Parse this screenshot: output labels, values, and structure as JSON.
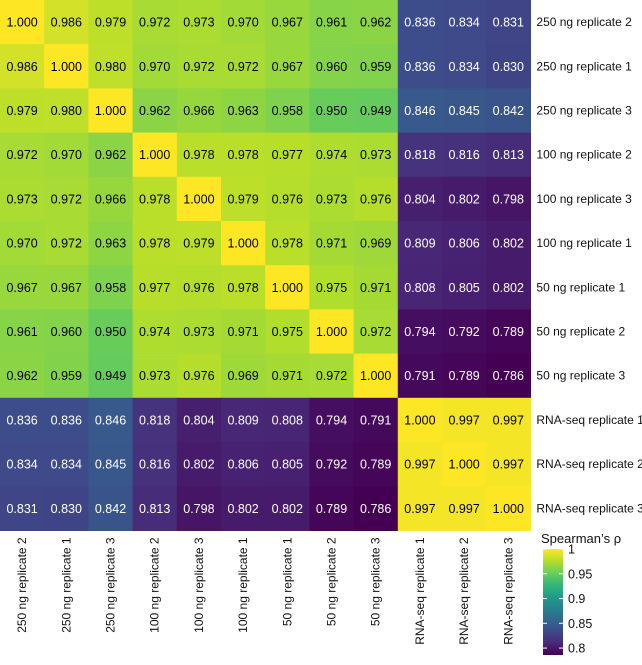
{
  "chart_data": {
    "type": "heatmap",
    "title": "",
    "xlabel": "",
    "ylabel": "",
    "row_labels": [
      "250 ng replicate 2",
      "250 ng replicate 1",
      "250 ng replicate 3",
      "100 ng replicate 2",
      "100 ng replicate 3",
      "100 ng replicate 1",
      "50 ng replicate 1",
      "50 ng replicate 2",
      "50 ng replicate 3",
      "RNA-seq replicate 1",
      "RNA-seq replicate 2",
      "RNA-seq replicate 3"
    ],
    "col_labels": [
      "250 ng replicate 2",
      "250 ng replicate 1",
      "250 ng replicate 3",
      "100 ng replicate 2",
      "100 ng replicate 3",
      "100 ng replicate 1",
      "50 ng replicate 1",
      "50 ng replicate 2",
      "50 ng replicate 3",
      "RNA-seq replicate 1",
      "RNA-seq replicate 2",
      "RNA-seq replicate 3"
    ],
    "values": [
      [
        "1.000",
        "0.986",
        "0.979",
        "0.972",
        "0.973",
        "0.970",
        "0.967",
        "0.961",
        "0.962",
        "0.836",
        "0.834",
        "0.831"
      ],
      [
        "0.986",
        "1.000",
        "0.980",
        "0.970",
        "0.972",
        "0.972",
        "0.967",
        "0.960",
        "0.959",
        "0.836",
        "0.834",
        "0.830"
      ],
      [
        "0.979",
        "0.980",
        "1.000",
        "0.962",
        "0.966",
        "0.963",
        "0.958",
        "0.950",
        "0.949",
        "0.846",
        "0.845",
        "0.842"
      ],
      [
        "0.972",
        "0.970",
        "0.962",
        "1.000",
        "0.978",
        "0.978",
        "0.977",
        "0.974",
        "0.973",
        "0.818",
        "0.816",
        "0.813"
      ],
      [
        "0.973",
        "0.972",
        "0.966",
        "0.978",
        "1.000",
        "0.979",
        "0.976",
        "0.973",
        "0.976",
        "0.804",
        "0.802",
        "0.798"
      ],
      [
        "0.970",
        "0.972",
        "0.963",
        "0.978",
        "0.979",
        "1.000",
        "0.978",
        "0.971",
        "0.969",
        "0.809",
        "0.806",
        "0.802"
      ],
      [
        "0.967",
        "0.967",
        "0.958",
        "0.977",
        "0.976",
        "0.978",
        "1.000",
        "0.975",
        "0.971",
        "0.808",
        "0.805",
        "0.802"
      ],
      [
        "0.961",
        "0.960",
        "0.950",
        "0.974",
        "0.973",
        "0.971",
        "0.975",
        "1.000",
        "0.972",
        "0.794",
        "0.792",
        "0.789"
      ],
      [
        "0.962",
        "0.959",
        "0.949",
        "0.973",
        "0.976",
        "0.969",
        "0.971",
        "0.972",
        "1.000",
        "0.791",
        "0.789",
        "0.786"
      ],
      [
        "0.836",
        "0.836",
        "0.846",
        "0.818",
        "0.804",
        "0.809",
        "0.808",
        "0.794",
        "0.791",
        "1.000",
        "0.997",
        "0.997"
      ],
      [
        "0.834",
        "0.834",
        "0.845",
        "0.816",
        "0.802",
        "0.806",
        "0.805",
        "0.792",
        "0.789",
        "0.997",
        "1.000",
        "0.997"
      ],
      [
        "0.831",
        "0.830",
        "0.842",
        "0.813",
        "0.798",
        "0.802",
        "0.802",
        "0.789",
        "0.786",
        "0.997",
        "0.997",
        "1.000"
      ]
    ],
    "color_scale": {
      "name": "viridis",
      "range": [
        0.786,
        1.0
      ],
      "stops": [
        "#440154",
        "#482878",
        "#3e4989",
        "#31688e",
        "#26828e",
        "#1f9e89",
        "#35b779",
        "#6ece58",
        "#b5de2b",
        "#fde725"
      ]
    },
    "legend": {
      "title": "Spearman’s ρ",
      "ticks": [
        "1",
        "0.95",
        "0.9",
        "0.85",
        "0.8"
      ],
      "tick_values": [
        1.0,
        0.95,
        0.9,
        0.85,
        0.8
      ],
      "placement": "bottom-right"
    },
    "text_colors": {
      "dark": "#000000",
      "light": "#ffffff"
    }
  }
}
